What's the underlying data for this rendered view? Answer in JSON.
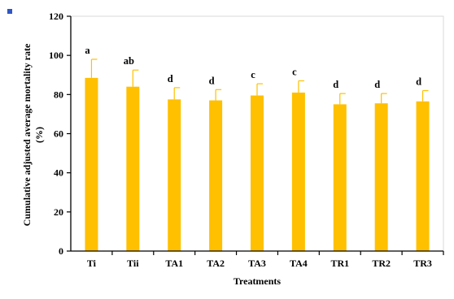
{
  "chart_data": {
    "type": "bar",
    "title": "",
    "xlabel": "Treatments",
    "ylabel_line1": "Cumulative adjusted average mortality rate",
    "ylabel_line2": "(%)",
    "ylim": [
      0,
      120
    ],
    "yticks": [
      0,
      20,
      40,
      60,
      80,
      100,
      120
    ],
    "grid": false,
    "legend": "none",
    "bar_color": "#FFC000",
    "error_color": "#FFC000",
    "categories": [
      "Ti",
      "Tii",
      "TA1",
      "TA2",
      "TA3",
      "TA4",
      "TR1",
      "TR2",
      "TR3"
    ],
    "values": [
      88.5,
      84,
      77.5,
      77,
      79.5,
      81,
      75,
      75.5,
      76.5
    ],
    "errors": [
      9.5,
      8.5,
      6,
      5.5,
      6,
      6,
      5.5,
      5,
      5.5
    ],
    "labels": [
      "a",
      "ab",
      "d",
      "d",
      "c",
      "c",
      "d",
      "d",
      "d"
    ]
  },
  "decor": {
    "corner_mark_color": "#2F56C6"
  }
}
